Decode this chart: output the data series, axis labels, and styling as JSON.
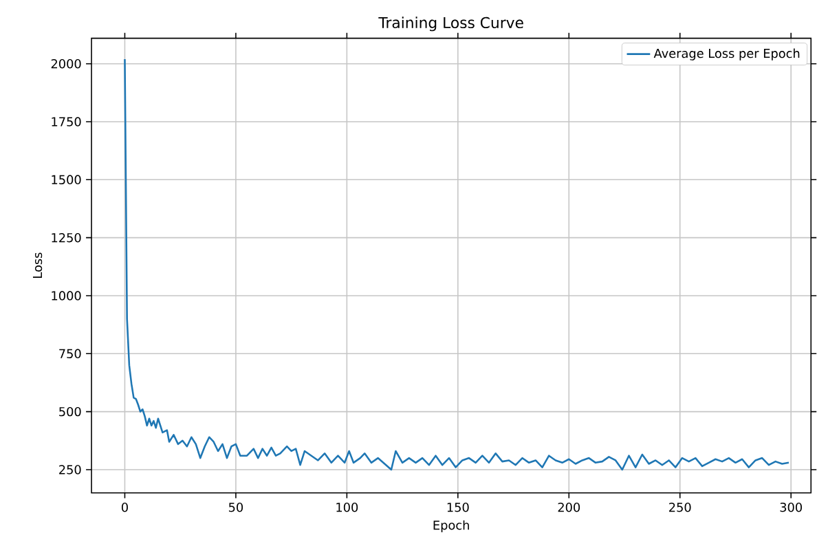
{
  "chart_data": {
    "type": "line",
    "title": "Training Loss Curve",
    "xlabel": "Epoch",
    "ylabel": "Loss",
    "xlim": [
      -15,
      309
    ],
    "ylim": [
      150,
      2110
    ],
    "xticks": [
      0,
      50,
      100,
      150,
      200,
      250,
      300
    ],
    "yticks": [
      250,
      500,
      750,
      1000,
      1250,
      1500,
      1750,
      2000
    ],
    "grid": true,
    "legend": "top right",
    "line_style": "solid",
    "marker": "none",
    "x": [
      0,
      1,
      2,
      3,
      4,
      5,
      6,
      7,
      8,
      9,
      10,
      11,
      12,
      13,
      14,
      15,
      17,
      19,
      20,
      22,
      24,
      26,
      28,
      30,
      32,
      34,
      36,
      38,
      40,
      42,
      44,
      46,
      48,
      50,
      52,
      55,
      58,
      60,
      62,
      64,
      66,
      68,
      70,
      73,
      75,
      77,
      79,
      81,
      84,
      87,
      90,
      93,
      96,
      99,
      101,
      103,
      106,
      108,
      111,
      114,
      117,
      120,
      122,
      125,
      128,
      131,
      134,
      137,
      140,
      143,
      146,
      149,
      152,
      155,
      158,
      161,
      164,
      167,
      170,
      173,
      176,
      179,
      182,
      185,
      188,
      191,
      194,
      197,
      200,
      203,
      206,
      209,
      212,
      215,
      218,
      221,
      224,
      227,
      230,
      233,
      236,
      239,
      242,
      245,
      248,
      251,
      254,
      257,
      260,
      263,
      266,
      269,
      272,
      275,
      278,
      281,
      284,
      287,
      290,
      293,
      296,
      299
    ],
    "series": [
      {
        "name": "Average Loss per Epoch",
        "color": "#1f77b4",
        "values": [
          2020,
          900,
          700,
          620,
          560,
          555,
          530,
          500,
          510,
          480,
          440,
          470,
          440,
          460,
          430,
          470,
          410,
          420,
          370,
          400,
          360,
          375,
          350,
          390,
          360,
          300,
          350,
          390,
          370,
          330,
          360,
          300,
          350,
          360,
          310,
          310,
          340,
          300,
          340,
          310,
          345,
          310,
          320,
          350,
          330,
          340,
          270,
          330,
          310,
          290,
          320,
          280,
          310,
          280,
          330,
          280,
          300,
          320,
          280,
          300,
          275,
          250,
          330,
          280,
          300,
          280,
          300,
          270,
          310,
          270,
          300,
          260,
          290,
          300,
          280,
          310,
          280,
          320,
          285,
          290,
          270,
          300,
          280,
          290,
          260,
          310,
          290,
          280,
          295,
          275,
          290,
          300,
          280,
          285,
          305,
          290,
          250,
          310,
          260,
          315,
          275,
          290,
          270,
          290,
          260,
          300,
          285,
          300,
          265,
          280,
          295,
          285,
          300,
          280,
          295,
          260,
          290,
          300,
          270,
          285,
          275,
          280
        ]
      }
    ]
  }
}
